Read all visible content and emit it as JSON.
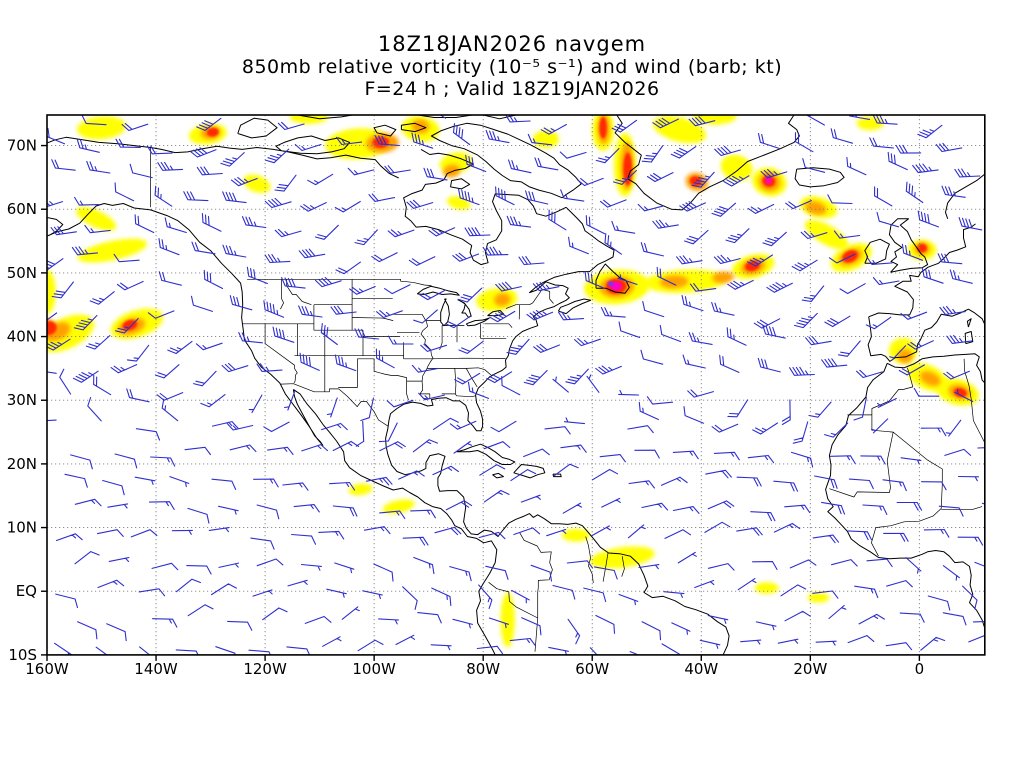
{
  "title": {
    "line1": "18Z18JAN2026 navgem",
    "line2": "850mb relative vorticity (10⁻⁵ s⁻¹) and wind (barb; kt)",
    "line3": "F=24 h ; Valid 18Z19JAN2026"
  },
  "chart_data": {
    "type": "map",
    "subtype": "filled vorticity maxima + wind barbs over geographic basemap",
    "model": "navgem",
    "init_time": "18Z18JAN2026",
    "forecast": "F=24 h",
    "valid_time": "18Z19JAN2026",
    "level": "850mb",
    "field": "relative vorticity",
    "field_units": "10⁻⁵ s⁻¹",
    "wind_units": "kt",
    "projection": "cylindrical equidistant",
    "lon_range": [
      -160,
      12
    ],
    "lat_range": [
      -10,
      74.8
    ],
    "grid_style": "dotted",
    "x_ticks": {
      "lons": [
        -160,
        -140,
        -120,
        -100,
        -80,
        -60,
        -40,
        -20,
        0
      ],
      "labels": [
        "160W",
        "140W",
        "120W",
        "100W",
        "80W",
        "60W",
        "40W",
        "20W",
        "0"
      ]
    },
    "y_ticks": {
      "lats": [
        70,
        60,
        50,
        40,
        30,
        20,
        10,
        0,
        -10
      ],
      "labels": [
        "70N",
        "60N",
        "50N",
        "40N",
        "30N",
        "20N",
        "10N",
        "EQ",
        "10S"
      ]
    },
    "colors": {
      "wind_barb": "#2f2fd0",
      "coast": "#000000",
      "grid": "#808080",
      "frame": "#000000",
      "vort_levels": {
        "1": "#ffff00",
        "2": "#ffa000",
        "3": "#ff2a00",
        "4": "#ff00c8",
        "5": "#7a30ff"
      }
    },
    "vort_scale_note": "filled vorticity maxima shading: yellow < orange < red < magenta",
    "vorticity_maxima_format": [
      "lon",
      "lat",
      "rx_deg",
      "ry_deg",
      "rot_deg",
      "level"
    ],
    "vorticity_maxima": [
      [
        -156.5,
        40.5,
        5.5,
        2.4,
        -25,
        1
      ],
      [
        -160,
        47,
        1.6,
        3.5,
        0,
        1
      ],
      [
        -148,
        53.5,
        6.5,
        1.5,
        -12,
        1
      ],
      [
        -151,
        58.5,
        4,
        1.3,
        25,
        1
      ],
      [
        -143.5,
        42,
        5,
        2.1,
        -18,
        1
      ],
      [
        -150,
        72.8,
        4.5,
        1.8,
        -5,
        1
      ],
      [
        -130.5,
        71.8,
        3.5,
        1.6,
        -8,
        1
      ],
      [
        -121.5,
        64,
        2.6,
        1.3,
        20,
        1
      ],
      [
        -112,
        74.5,
        3.5,
        1.1,
        0,
        1
      ],
      [
        -103,
        70.3,
        6,
        2.4,
        -4,
        1
      ],
      [
        -91.5,
        72.6,
        3.5,
        2,
        8,
        1
      ],
      [
        -85,
        67.3,
        3,
        1.6,
        -12,
        1
      ],
      [
        -84.5,
        61,
        2.2,
        1,
        15,
        1
      ],
      [
        -77.5,
        45.8,
        3.8,
        1.8,
        -8,
        1
      ],
      [
        -55.5,
        47.8,
        6,
        2.7,
        -4,
        1
      ],
      [
        -43,
        48.7,
        7.5,
        1.8,
        -3,
        1
      ],
      [
        -30.5,
        51,
        4,
        1.8,
        -15,
        1
      ],
      [
        -54,
        67,
        2,
        5,
        0,
        1
      ],
      [
        -58,
        72.4,
        2,
        3.2,
        0,
        1
      ],
      [
        -44,
        72.5,
        5,
        1.9,
        15,
        1
      ],
      [
        -33.5,
        66.5,
        3,
        2,
        20,
        1
      ],
      [
        -27.5,
        64.3,
        3.2,
        2.2,
        15,
        1
      ],
      [
        -18.5,
        60.3,
        3.5,
        1.6,
        15,
        1
      ],
      [
        -12.5,
        52.4,
        4,
        1.9,
        -25,
        1
      ],
      [
        -17,
        56,
        4.5,
        1.5,
        30,
        1
      ],
      [
        0.5,
        53.6,
        2.6,
        1.6,
        0,
        1
      ],
      [
        -3,
        37.8,
        2.6,
        2,
        0,
        1
      ],
      [
        1.5,
        33.6,
        4,
        1.9,
        25,
        1
      ],
      [
        7,
        31.3,
        4,
        2,
        15,
        1
      ],
      [
        -9,
        73.5,
        2.5,
        1.1,
        0,
        1
      ],
      [
        -68.5,
        71,
        2.4,
        1.4,
        0,
        1
      ],
      [
        -95.5,
        13.3,
        3,
        1,
        -12,
        1
      ],
      [
        -102.5,
        16,
        2.2,
        0.9,
        -8,
        1
      ],
      [
        -54.5,
        5.3,
        6,
        1.6,
        -8,
        1
      ],
      [
        -63,
        8.8,
        2.6,
        1,
        0,
        1
      ],
      [
        -75.5,
        -4.5,
        1.3,
        4.3,
        0,
        1
      ],
      [
        -28,
        0.5,
        2.2,
        0.9,
        0,
        1
      ],
      [
        -18.5,
        -1,
        2,
        0.8,
        0,
        1
      ],
      [
        -37.5,
        74.6,
        4,
        1.3,
        0,
        1
      ],
      [
        -158,
        40.8,
        2.4,
        1.3,
        -25,
        2
      ],
      [
        -144.5,
        41.6,
        2.6,
        1.2,
        -18,
        2
      ],
      [
        -130,
        72,
        1.8,
        1,
        -8,
        2
      ],
      [
        -98.5,
        70.4,
        3,
        1.5,
        -4,
        2
      ],
      [
        -91.5,
        73,
        1.6,
        1.1,
        8,
        2
      ],
      [
        -76.5,
        45.8,
        1.5,
        1,
        -8,
        2
      ],
      [
        -55.5,
        47.8,
        3.2,
        1.7,
        -4,
        2
      ],
      [
        -45,
        48.6,
        2.6,
        1,
        -3,
        2
      ],
      [
        -36,
        49.3,
        2,
        0.9,
        -5,
        2
      ],
      [
        -30.5,
        51,
        2.3,
        1.2,
        -15,
        2
      ],
      [
        -53.6,
        66.8,
        1.2,
        3.8,
        0,
        2
      ],
      [
        -57.9,
        72.6,
        1.1,
        2.4,
        0,
        2
      ],
      [
        -40.8,
        64.3,
        2.1,
        1.4,
        15,
        2
      ],
      [
        -27.5,
        64.3,
        2,
        1.5,
        15,
        2
      ],
      [
        -19,
        60.2,
        2,
        1,
        15,
        2
      ],
      [
        -12.6,
        52.5,
        2.3,
        1.2,
        -25,
        2
      ],
      [
        0.5,
        53.8,
        1.4,
        1,
        0,
        2
      ],
      [
        2,
        33.4,
        2,
        1,
        25,
        2
      ],
      [
        7.4,
        31.3,
        2.1,
        1.1,
        15,
        2
      ],
      [
        -2.6,
        36.9,
        1.4,
        1.1,
        0,
        2
      ],
      [
        -160,
        41.2,
        1.8,
        1.6,
        0,
        2
      ],
      [
        -85.8,
        66,
        1.6,
        1,
        -12,
        2
      ],
      [
        -159.8,
        41.3,
        1.6,
        1.1,
        -15,
        3
      ],
      [
        -144.8,
        41.8,
        1.4,
        0.8,
        -18,
        3
      ],
      [
        -129.6,
        72.1,
        1.1,
        0.7,
        -8,
        3
      ],
      [
        -98.8,
        70.5,
        1.5,
        0.9,
        -4,
        3
      ],
      [
        -55.6,
        47.9,
        1.9,
        1.2,
        -4,
        3
      ],
      [
        -30.6,
        51.1,
        1.4,
        0.8,
        -15,
        3
      ],
      [
        -53.5,
        66.3,
        0.8,
        2.6,
        0,
        3
      ],
      [
        -58,
        72.8,
        0.7,
        1.7,
        0,
        3
      ],
      [
        -27.6,
        64.4,
        1.2,
        0.9,
        15,
        3
      ],
      [
        -12.7,
        52.6,
        1.5,
        0.9,
        -25,
        3
      ],
      [
        0.5,
        53.9,
        0.9,
        0.7,
        0,
        3
      ],
      [
        7.5,
        31.2,
        1.2,
        0.7,
        15,
        3
      ],
      [
        -41,
        64.4,
        1.1,
        0.8,
        15,
        3
      ],
      [
        -55.6,
        47.9,
        1.05,
        0.7,
        -4,
        4
      ],
      [
        -27.7,
        64.5,
        0.65,
        0.5,
        0,
        4
      ],
      [
        -56.6,
        48.3,
        0.55,
        0.4,
        0,
        5
      ]
    ],
    "wind_model": {
      "grid": {
        "lon_start": -157.5,
        "lon_step": 6.9,
        "cols": 25,
        "lat_start": -8.6,
        "lat_step": 4.35,
        "rows": 20
      },
      "bands": [
        {
          "name": "midlatitude westerlies 20-45 kt",
          "lat_min": 33,
          "lat_max": 76,
          "dir_base": 262,
          "dir_wave": 32,
          "dir_klon": 0.09,
          "dir_klat": 0.13,
          "spd_base": 27,
          "spd_wave": 12,
          "spd_klon": 0.11,
          "spd_klat": 0.07,
          "jit_dir": 16,
          "jit_spd": 9
        },
        {
          "name": "subtropical light variable",
          "lat_min": 26,
          "lat_max": 33,
          "dir_base": 255,
          "dir_wave": 55,
          "dir_klon": 0.07,
          "dir_klat": 0.2,
          "spd_base": 13,
          "spd_wave": 6,
          "spd_klon": 0.09,
          "spd_klat": 0.1,
          "jit_dir": 25,
          "jit_spd": 6
        },
        {
          "name": "trade easterlies 10-20 kt",
          "lat_min": 6,
          "lat_max": 26,
          "dir_base": 80,
          "dir_wave": 18,
          "dir_klon": 0.05,
          "dir_klat": 0.12,
          "spd_base": 13,
          "spd_wave": 5,
          "spd_klon": 0.06,
          "spd_klat": 0.08,
          "jit_dir": 14,
          "jit_spd": 5
        },
        {
          "name": "equatorial light easterlies",
          "lat_min": -11,
          "lat_max": 6,
          "dir_base": 95,
          "dir_wave": 30,
          "dir_klon": 0.06,
          "dir_klat": 0.2,
          "spd_base": 8,
          "spd_wave": 3,
          "spd_klon": 0.07,
          "spd_klat": 0.1,
          "jit_dir": 22,
          "jit_spd": 4
        }
      ]
    }
  }
}
